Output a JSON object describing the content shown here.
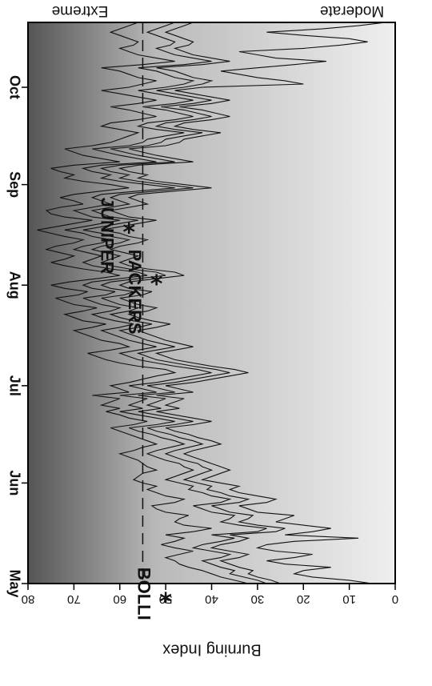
{
  "chart_data": {
    "type": "line",
    "ylabel": "Burning Index",
    "ylim": [
      0,
      80
    ],
    "y_ticks": [
      "0",
      "10",
      "20",
      "30",
      "40",
      "50",
      "60",
      "70",
      "80"
    ],
    "x_ticks": [
      "May",
      "Jun",
      "Jul",
      "Aug",
      "Sep",
      "Oct"
    ],
    "x_tick_days": [
      0,
      31,
      61,
      92,
      123,
      153
    ],
    "xlim_days": [
      0,
      173
    ],
    "gradient_labels": {
      "top": "Extreme",
      "bottom": "Moderate"
    },
    "threshold": 55,
    "annotations": [
      {
        "label": "BOLLI",
        "x_day": 5,
        "y": 55,
        "star_y": 50
      },
      {
        "label": "PACKERS",
        "x_day": 103,
        "y": 57,
        "star_y": 52
      },
      {
        "label": "JUNIPER",
        "x_day": 119,
        "y": 63,
        "star_y": 58
      }
    ],
    "series": [
      {
        "values": [
          32,
          35,
          38,
          40,
          42,
          45,
          47,
          48,
          50,
          47,
          44,
          48,
          51,
          48,
          46,
          50,
          44,
          40,
          46,
          48,
          47,
          45,
          50,
          52,
          53,
          48,
          46,
          50,
          52,
          54,
          52,
          55,
          57,
          56,
          55,
          52,
          54,
          55,
          56,
          58,
          60,
          57,
          55,
          52,
          54,
          56,
          58,
          60,
          62,
          57,
          54,
          58,
          60,
          63,
          60,
          64,
          62,
          60,
          66,
          58,
          60,
          62,
          58,
          55,
          52,
          48,
          50,
          56,
          60,
          63,
          65,
          67,
          62,
          58,
          60,
          64,
          66,
          68,
          70,
          66,
          63,
          68,
          70,
          72,
          68,
          65,
          70,
          72,
          74,
          69,
          67,
          72,
          75,
          71,
          65,
          60,
          63,
          68,
          72,
          75,
          72,
          70,
          73,
          76,
          74,
          70,
          68,
          72,
          75,
          78,
          74,
          70,
          66,
          72,
          75,
          76,
          73,
          68,
          70,
          73,
          70,
          64,
          58,
          62,
          68,
          72,
          70,
          73,
          75,
          70,
          60,
          64,
          68,
          70,
          72,
          66,
          62,
          60,
          58,
          56,
          60,
          64,
          62,
          56,
          52,
          55,
          58,
          62,
          56,
          52,
          56,
          60,
          64,
          58,
          55,
          52,
          56,
          58,
          60,
          64,
          55,
          48,
          52,
          56,
          58,
          60,
          57,
          56,
          58,
          60,
          62,
          60,
          58,
          56
        ]
      },
      {
        "values": [
          28,
          30,
          33,
          36,
          35,
          38,
          40,
          42,
          38,
          36,
          40,
          44,
          42,
          38,
          35,
          40,
          30,
          28,
          34,
          38,
          36,
          35,
          40,
          42,
          44,
          38,
          36,
          40,
          42,
          45,
          44,
          47,
          50,
          48,
          46,
          44,
          46,
          47,
          50,
          52,
          54,
          52,
          49,
          46,
          48,
          51,
          53,
          56,
          58,
          52,
          48,
          52,
          56,
          60,
          55,
          58,
          56,
          54,
          60,
          52,
          55,
          58,
          52,
          48,
          44,
          40,
          43,
          48,
          52,
          56,
          58,
          60,
          56,
          52,
          55,
          58,
          60,
          62,
          64,
          60,
          57,
          61,
          64,
          66,
          62,
          60,
          64,
          66,
          68,
          63,
          61,
          66,
          68,
          66,
          60,
          54,
          56,
          62,
          66,
          68,
          66,
          64,
          67,
          70,
          68,
          64,
          62,
          66,
          68,
          72,
          68,
          64,
          60,
          66,
          68,
          70,
          66,
          62,
          64,
          66,
          64,
          56,
          48,
          54,
          60,
          64,
          62,
          66,
          68,
          64,
          52,
          56,
          60,
          63,
          66,
          58,
          55,
          54,
          50,
          46,
          52,
          56,
          54,
          48,
          44,
          47,
          50,
          55,
          48,
          44,
          48,
          52,
          56,
          50,
          46,
          44,
          48,
          50,
          52,
          56,
          46,
          40,
          44,
          48,
          50,
          52,
          49,
          48,
          50,
          52,
          54,
          52,
          50,
          48
        ]
      },
      {
        "values": [
          25,
          27,
          30,
          32,
          31,
          34,
          36,
          38,
          34,
          32,
          36,
          40,
          38,
          34,
          32,
          36,
          26,
          24,
          30,
          34,
          32,
          31,
          36,
          38,
          40,
          34,
          32,
          36,
          38,
          41,
          40,
          43,
          46,
          44,
          42,
          40,
          42,
          43,
          46,
          48,
          50,
          48,
          45,
          42,
          44,
          47,
          49,
          52,
          54,
          48,
          44,
          48,
          52,
          56,
          51,
          54,
          52,
          50,
          56,
          48,
          51,
          54,
          48,
          44,
          40,
          36,
          39,
          44,
          48,
          52,
          54,
          56,
          52,
          48,
          51,
          54,
          56,
          58,
          60,
          56,
          53,
          57,
          60,
          62,
          58,
          56,
          60,
          62,
          64,
          59,
          57,
          62,
          64,
          62,
          56,
          50,
          52,
          58,
          62,
          64,
          62,
          60,
          63,
          66,
          64,
          60,
          58,
          62,
          64,
          68,
          64,
          60,
          56,
          62,
          64,
          66,
          62,
          58,
          60,
          62,
          60,
          52,
          44,
          50,
          56,
          60,
          58,
          62,
          64,
          60,
          48,
          52,
          56,
          59,
          62,
          54,
          51,
          50,
          46,
          42,
          48,
          52,
          50,
          44,
          40,
          43,
          46,
          51,
          44,
          40,
          44,
          48,
          52,
          46,
          42,
          40,
          44,
          46,
          48,
          52,
          42,
          36,
          40,
          44,
          46,
          48,
          45,
          44,
          46,
          48,
          50,
          48,
          46,
          44
        ]
      },
      {
        "values": [
          5,
          10,
          18,
          22,
          20,
          14,
          24,
          28,
          22,
          18,
          26,
          30,
          28,
          22,
          8,
          24,
          18,
          14,
          20,
          26,
          24,
          22,
          30,
          32,
          34,
          28,
          26,
          30,
          34,
          36,
          34,
          38,
          42,
          40,
          38,
          36,
          38,
          40,
          42,
          44,
          46,
          44,
          41,
          38,
          40,
          43,
          45,
          48,
          50,
          44,
          40,
          44,
          48,
          52,
          47,
          50,
          48,
          46,
          52,
          44,
          47,
          50,
          44,
          40,
          36,
          32,
          35,
          40,
          44,
          48,
          50,
          52,
          48,
          44,
          47,
          50,
          52,
          54,
          56,
          52,
          49,
          53,
          56,
          58,
          54,
          52,
          56,
          58,
          60,
          55,
          53,
          58,
          60,
          58,
          52,
          46,
          48,
          54,
          58,
          60,
          58,
          56,
          59,
          62,
          60,
          56,
          54,
          58,
          60,
          64,
          60,
          56,
          52,
          58,
          60,
          62,
          58,
          54,
          56,
          58,
          56,
          48,
          40,
          46,
          52,
          56,
          54,
          58,
          60,
          56,
          44,
          48,
          52,
          55,
          58,
          50,
          47,
          46,
          42,
          38,
          44,
          48,
          46,
          40,
          36,
          39,
          42,
          47,
          40,
          36,
          40,
          44,
          48,
          42,
          20,
          24,
          30,
          34,
          38,
          30,
          22,
          15,
          26,
          30,
          34,
          20,
          12,
          6,
          10,
          20,
          28,
          16,
          8,
          2
        ]
      }
    ]
  }
}
